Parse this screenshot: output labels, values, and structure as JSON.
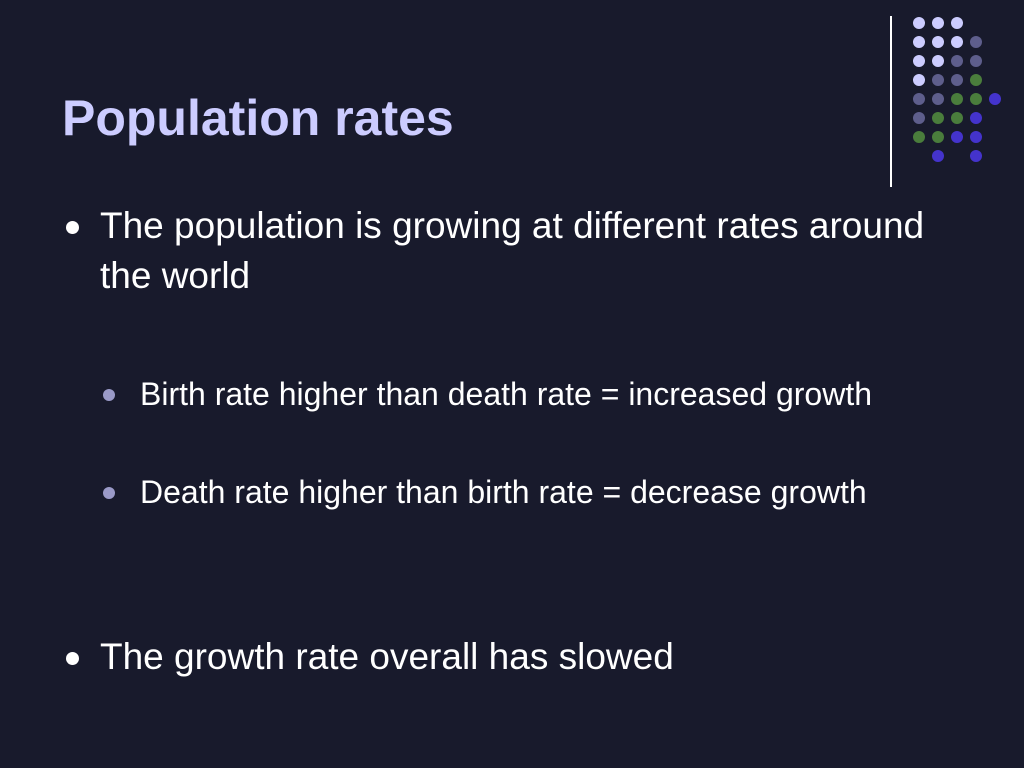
{
  "slide": {
    "title": "Population rates",
    "bullets": [
      {
        "text": "The population is growing at different rates around the world",
        "level": 1
      },
      {
        "text": "Birth rate higher than death rate = increased growth",
        "level": 2
      },
      {
        "text": "Death rate higher than birth rate = decrease growth",
        "level": 2
      },
      {
        "text": "The growth rate overall has slowed",
        "level": 1
      }
    ]
  },
  "colors": {
    "background": "#181a2c",
    "title": "#ccccff",
    "text": "#ffffff",
    "sub_bullet": "#9a9ac8",
    "dot_lavender": "#ccccff",
    "dot_slate": "#5e5e8c",
    "dot_green": "#4a7d3c",
    "dot_blue": "#4433cc"
  },
  "decoration": {
    "dot_grid": [
      [
        "lavender",
        "lavender",
        "lavender",
        "",
        ""
      ],
      [
        "lavender",
        "lavender",
        "lavender",
        "slate",
        ""
      ],
      [
        "lavender",
        "lavender",
        "slate",
        "slate",
        ""
      ],
      [
        "lavender",
        "slate",
        "slate",
        "green",
        ""
      ],
      [
        "slate",
        "slate",
        "green",
        "green",
        "blue"
      ],
      [
        "slate",
        "green",
        "green",
        "blue",
        ""
      ],
      [
        "green",
        "green",
        "blue",
        "blue",
        ""
      ],
      [
        "",
        "blue",
        "",
        "blue",
        ""
      ]
    ]
  }
}
